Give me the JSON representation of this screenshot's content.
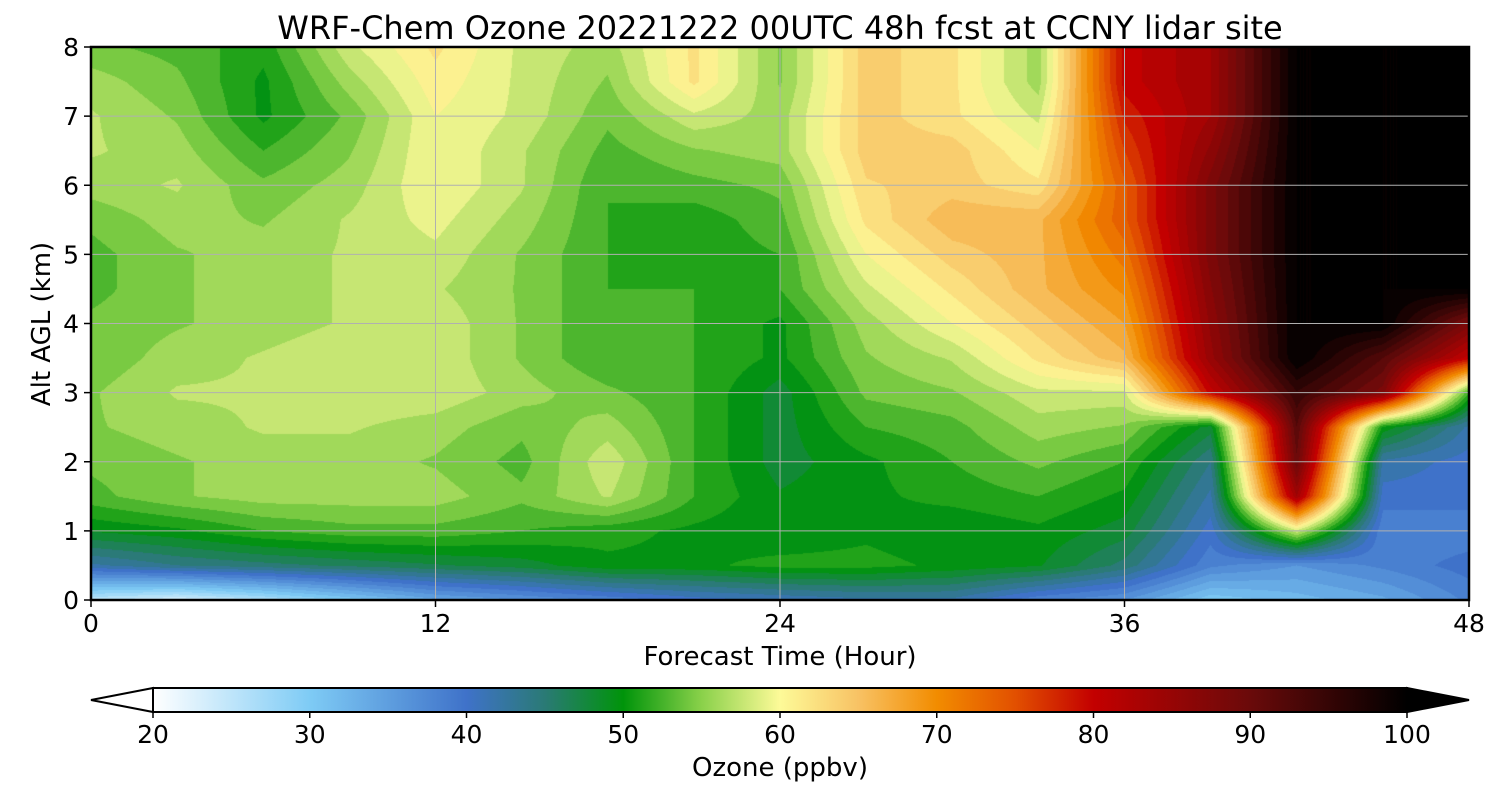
{
  "chart_data": {
    "type": "heatmap",
    "title": "WRF-Chem Ozone  20221222 00UTC 48h fcst at CCNY lidar site",
    "xlabel": "Forecast Time (Hour)",
    "ylabel": "Alt AGL (km)",
    "xlim": [
      0,
      48
    ],
    "ylim": [
      0,
      8
    ],
    "x_ticks": [
      0,
      12,
      24,
      36,
      48
    ],
    "y_ticks": [
      0,
      1,
      2,
      3,
      4,
      5,
      6,
      7,
      8
    ],
    "grid": true,
    "colorbar": {
      "label": "Ozone  (ppbv)",
      "range": [
        20,
        100
      ],
      "extend": "both",
      "ticks": [
        20,
        30,
        40,
        50,
        60,
        70,
        80,
        90,
        100
      ],
      "stops": [
        {
          "value": 20,
          "color": "#ffffff"
        },
        {
          "value": 30,
          "color": "#7ecbf5"
        },
        {
          "value": 40,
          "color": "#3f72c9"
        },
        {
          "value": 45,
          "color": "#2a7a75"
        },
        {
          "value": 50,
          "color": "#00940a"
        },
        {
          "value": 55,
          "color": "#8ad14a"
        },
        {
          "value": 60,
          "color": "#fdfa98"
        },
        {
          "value": 65,
          "color": "#f8c264"
        },
        {
          "value": 70,
          "color": "#f28c00"
        },
        {
          "value": 75,
          "color": "#e25000"
        },
        {
          "value": 80,
          "color": "#c30000"
        },
        {
          "value": 90,
          "color": "#6a0a0a"
        },
        {
          "value": 100,
          "color": "#000000"
        }
      ]
    },
    "times": [
      0,
      3,
      6,
      9,
      12,
      15,
      18,
      21,
      24,
      27,
      30,
      33,
      36,
      39,
      42,
      45,
      48
    ],
    "altitudes": [
      0,
      0.5,
      1,
      1.5,
      2,
      2.5,
      3,
      3.5,
      4,
      4.5,
      5,
      5.5,
      6,
      6.5,
      7,
      7.5,
      8
    ],
    "ozone_ppbv": [
      [
        25,
        23,
        26,
        30,
        34,
        36,
        38,
        40,
        41,
        42,
        42,
        38,
        36,
        30,
        32,
        34,
        38
      ],
      [
        42,
        44,
        45,
        46,
        47,
        48,
        50,
        50,
        51,
        51,
        50,
        49,
        45,
        38,
        36,
        38,
        40
      ],
      [
        49,
        50,
        52,
        53,
        53,
        52,
        51,
        50,
        49,
        50,
        49,
        50,
        48,
        40,
        58,
        38,
        38
      ],
      [
        53,
        55,
        56,
        56,
        56,
        54,
        57,
        52,
        49,
        50,
        51,
        52,
        50,
        42,
        84,
        40,
        40
      ],
      [
        54,
        55,
        56,
        56,
        55,
        53,
        58,
        52,
        48,
        50,
        52,
        54,
        52,
        44,
        90,
        42,
        40
      ],
      [
        55,
        56,
        57,
        57,
        56,
        54,
        56,
        52,
        48,
        52,
        53,
        56,
        55,
        48,
        92,
        50,
        42
      ],
      [
        55,
        57,
        57,
        58,
        58,
        56,
        54,
        52,
        48,
        54,
        55,
        58,
        58,
        80,
        95,
        88,
        52
      ],
      [
        54,
        56,
        57,
        58,
        58,
        55,
        52,
        52,
        50,
        55,
        57,
        62,
        66,
        85,
        100,
        92,
        80
      ],
      [
        54,
        55,
        56,
        57,
        58,
        55,
        52,
        52,
        50,
        56,
        60,
        64,
        68,
        86,
        100,
        100,
        88
      ],
      [
        53,
        55,
        56,
        57,
        57,
        55,
        52,
        52,
        52,
        58,
        62,
        66,
        70,
        87,
        100,
        100,
        100
      ],
      [
        53,
        55,
        56,
        57,
        58,
        55,
        52,
        51,
        52,
        60,
        64,
        66,
        72,
        88,
        100,
        100,
        100
      ],
      [
        54,
        56,
        55,
        57,
        59,
        56,
        52,
        51,
        53,
        62,
        66,
        66,
        74,
        88,
        100,
        100,
        100
      ],
      [
        56,
        57,
        54,
        56,
        60,
        57,
        52,
        53,
        54,
        63,
        64,
        62,
        74,
        88,
        100,
        100,
        100
      ],
      [
        57,
        56,
        52,
        55,
        60,
        57,
        53,
        55,
        56,
        64,
        64,
        60,
        76,
        86,
        100,
        100,
        100
      ],
      [
        57,
        55,
        50,
        54,
        60,
        58,
        54,
        58,
        56,
        64,
        62,
        58,
        78,
        84,
        100,
        100,
        100
      ],
      [
        56,
        54,
        50,
        56,
        61,
        58,
        55,
        62,
        55,
        64,
        62,
        56,
        80,
        84,
        100,
        100,
        100
      ],
      [
        54,
        53,
        51,
        58,
        62,
        58,
        56,
        62,
        55,
        64,
        62,
        56,
        80,
        84,
        100,
        100,
        100
      ]
    ]
  }
}
